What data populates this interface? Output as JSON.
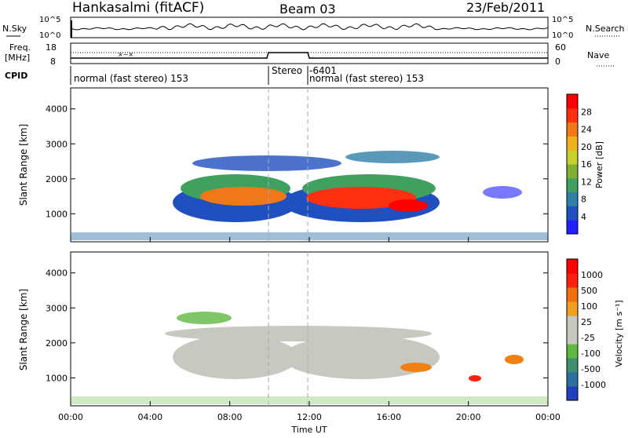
{
  "header": {
    "station": "Hankasalmi (fitACF)",
    "beam": "Beam 03",
    "date": "23/Feb/2011"
  },
  "panels": {
    "nsky": {
      "left_label": "N.Sky",
      "left_ticks": [
        "10^5",
        "10^0"
      ],
      "right_ticks": [
        "10^5",
        "10^0"
      ],
      "right_label": "N.Search"
    },
    "freq": {
      "left_label_1": "Freq.",
      "left_label_2": "[MHz]",
      "left_ticks": [
        "18",
        "8"
      ],
      "right_ticks": [
        "60",
        "0"
      ],
      "right_label": "Nave"
    },
    "cpid": {
      "label": "CPID",
      "segments": [
        "normal (fast stereo) 153",
        "Stereo",
        "-6401",
        "normal (fast stereo) 153"
      ]
    }
  },
  "power_colorbar": {
    "label": "Power [dB]",
    "ticks": [
      "28",
      "24",
      "20",
      "16",
      "12",
      "8",
      "4"
    ],
    "colors": [
      "#2020ff",
      "#204fc0",
      "#2f7fa8",
      "#40a060",
      "#7fb030",
      "#c8d030",
      "#f0b020",
      "#f07818",
      "#ff3010",
      "#ff0000"
    ]
  },
  "velocity_colorbar": {
    "label": "Velocity [m s⁻¹]",
    "ticks": [
      "1000",
      "500",
      "100",
      "25",
      "-25",
      "-100",
      "-500",
      "-1000"
    ],
    "colors": [
      "#2040c0",
      "#2f6fa0",
      "#3f9070",
      "#60b840",
      "#c8c8c0",
      "#c8c8c0",
      "#f0a020",
      "#f07010",
      "#ff2010",
      "#ff0000"
    ]
  },
  "chart_data": [
    {
      "type": "heatmap",
      "panel": "power",
      "ylabel": "Slant Range [km]",
      "yticks": [
        1000,
        2000,
        3000,
        4000
      ],
      "ylim": [
        200,
        4600
      ],
      "xlim": [
        0,
        24
      ],
      "vertical_markers_hours": [
        10,
        12
      ],
      "regions": [
        {
          "t0": 5.2,
          "t1": 18.5,
          "r0": 1200,
          "r1": 2700,
          "level": "high",
          "color": "#ff4a10"
        },
        {
          "t0": 5.0,
          "t1": 19.0,
          "r0": 1000,
          "r1": 3000,
          "level": "medium",
          "color": "#2f6fa8"
        },
        {
          "t0": 0.0,
          "t1": 24.0,
          "r0": 200,
          "r1": 400,
          "level": "low",
          "color": "#2f6fa8"
        }
      ]
    },
    {
      "type": "heatmap",
      "panel": "velocity",
      "xlabel": "Time UT",
      "ylabel": "Slant Range [km]",
      "yticks": [
        1000,
        2000,
        3000,
        4000
      ],
      "ylim": [
        200,
        4600
      ],
      "xlim": [
        0,
        24
      ],
      "xticks": [
        "00:00",
        "04:00",
        "08:00",
        "12:00",
        "16:00",
        "20:00",
        "00:00"
      ],
      "vertical_markers_hours": [
        10,
        12
      ],
      "regions": [
        {
          "t0": 5.0,
          "t1": 18.8,
          "r0": 900,
          "r1": 3000,
          "level": "ground-scatter",
          "color": "#c8c8c0"
        },
        {
          "t0": 17.0,
          "t1": 18.0,
          "r0": 1000,
          "r1": 1400,
          "level": "negative",
          "color": "#f08010"
        },
        {
          "t0": 20.5,
          "t1": 22.5,
          "r0": 1200,
          "r1": 1700,
          "level": "negative",
          "color": "#f08010"
        }
      ]
    }
  ]
}
